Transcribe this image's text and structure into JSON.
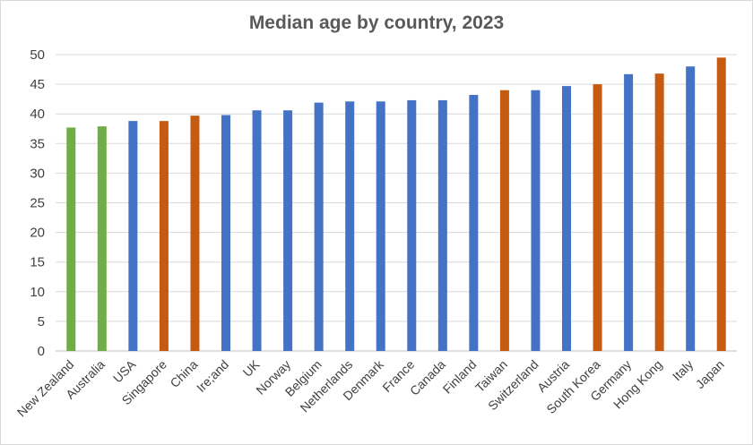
{
  "chart_data": {
    "type": "bar",
    "title": "Median age by country, 2023",
    "xlabel": "",
    "ylabel": "",
    "ylim": [
      0,
      50
    ],
    "y_ticks": [
      0,
      5,
      10,
      15,
      20,
      25,
      30,
      35,
      40,
      45,
      50
    ],
    "grid": true,
    "legend": "none",
    "categories": [
      "New Zealand",
      "Australia",
      "USA",
      "Singapore",
      "China",
      "Ire;and",
      "UK",
      "Norway",
      "Belgium",
      "Netherlands",
      "Denmark",
      "France",
      "Canada",
      "Finland",
      "Taiwan",
      "Switzerland",
      "Austria",
      "South Korea",
      "Germany",
      "Hong Kong",
      "Italy",
      "Japan"
    ],
    "values": [
      37.7,
      37.9,
      38.8,
      38.8,
      39.7,
      39.8,
      40.6,
      40.6,
      41.9,
      42.1,
      42.1,
      42.3,
      42.3,
      43.2,
      44.0,
      44.0,
      44.7,
      45.0,
      46.7,
      46.8,
      48.0,
      49.5
    ],
    "bar_colors": [
      "#70ad47",
      "#70ad47",
      "#4472c4",
      "#c55a11",
      "#c55a11",
      "#4472c4",
      "#4472c4",
      "#4472c4",
      "#4472c4",
      "#4472c4",
      "#4472c4",
      "#4472c4",
      "#4472c4",
      "#4472c4",
      "#c55a11",
      "#4472c4",
      "#4472c4",
      "#c55a11",
      "#4472c4",
      "#c55a11",
      "#4472c4",
      "#c55a11"
    ]
  }
}
